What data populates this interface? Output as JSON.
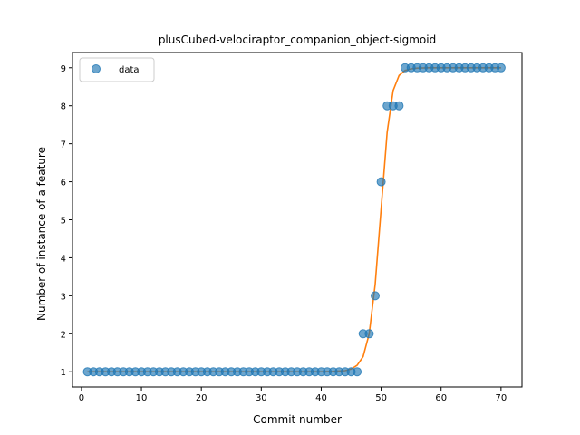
{
  "chart_data": {
    "type": "scatter",
    "title": "plusCubed-velociraptor_companion_object-sigmoid",
    "xlabel": "Commit number",
    "ylabel": "Number of instance of a feature",
    "xlim": [
      -1.5,
      73.5
    ],
    "ylim": [
      0.6,
      9.4
    ],
    "xticks": [
      0,
      10,
      20,
      30,
      40,
      50,
      60,
      70
    ],
    "yticks": [
      1,
      2,
      3,
      4,
      5,
      6,
      7,
      8,
      9
    ],
    "grid": false,
    "legend": {
      "placement": "top-left",
      "entries": [
        "data"
      ]
    },
    "series": [
      {
        "name": "data",
        "kind": "scatter",
        "color": "#1f77b4",
        "x": [
          1,
          2,
          3,
          4,
          5,
          6,
          7,
          8,
          9,
          10,
          11,
          12,
          13,
          14,
          15,
          16,
          17,
          18,
          19,
          20,
          21,
          22,
          23,
          24,
          25,
          26,
          27,
          28,
          29,
          30,
          31,
          32,
          33,
          34,
          35,
          36,
          37,
          38,
          39,
          40,
          41,
          42,
          43,
          44,
          45,
          46,
          47,
          48,
          49,
          50,
          51,
          52,
          53,
          54,
          55,
          56,
          57,
          58,
          59,
          60,
          61,
          62,
          63,
          64,
          65,
          66,
          67,
          68,
          69,
          70
        ],
        "y": [
          1,
          1,
          1,
          1,
          1,
          1,
          1,
          1,
          1,
          1,
          1,
          1,
          1,
          1,
          1,
          1,
          1,
          1,
          1,
          1,
          1,
          1,
          1,
          1,
          1,
          1,
          1,
          1,
          1,
          1,
          1,
          1,
          1,
          1,
          1,
          1,
          1,
          1,
          1,
          1,
          1,
          1,
          1,
          1,
          1,
          1,
          2,
          2,
          3,
          6,
          8,
          8,
          8,
          9,
          9,
          9,
          9,
          9,
          9,
          9,
          9,
          9,
          9,
          9,
          9,
          9,
          9,
          9,
          9,
          9
        ]
      },
      {
        "name": "",
        "kind": "line",
        "color": "#ff7f0e",
        "x": [
          1,
          5,
          10,
          15,
          20,
          25,
          30,
          35,
          40,
          42,
          44,
          45,
          46,
          47,
          48,
          49,
          50,
          51,
          52,
          53,
          54,
          55,
          56,
          58,
          60,
          65,
          70
        ],
        "y": [
          1,
          1,
          1,
          1,
          1,
          1,
          1,
          1,
          1,
          1.01,
          1.03,
          1.07,
          1.17,
          1.4,
          2.0,
          3.3,
          5.3,
          7.3,
          8.4,
          8.8,
          8.93,
          8.97,
          8.99,
          9,
          9,
          9,
          9
        ]
      }
    ]
  }
}
